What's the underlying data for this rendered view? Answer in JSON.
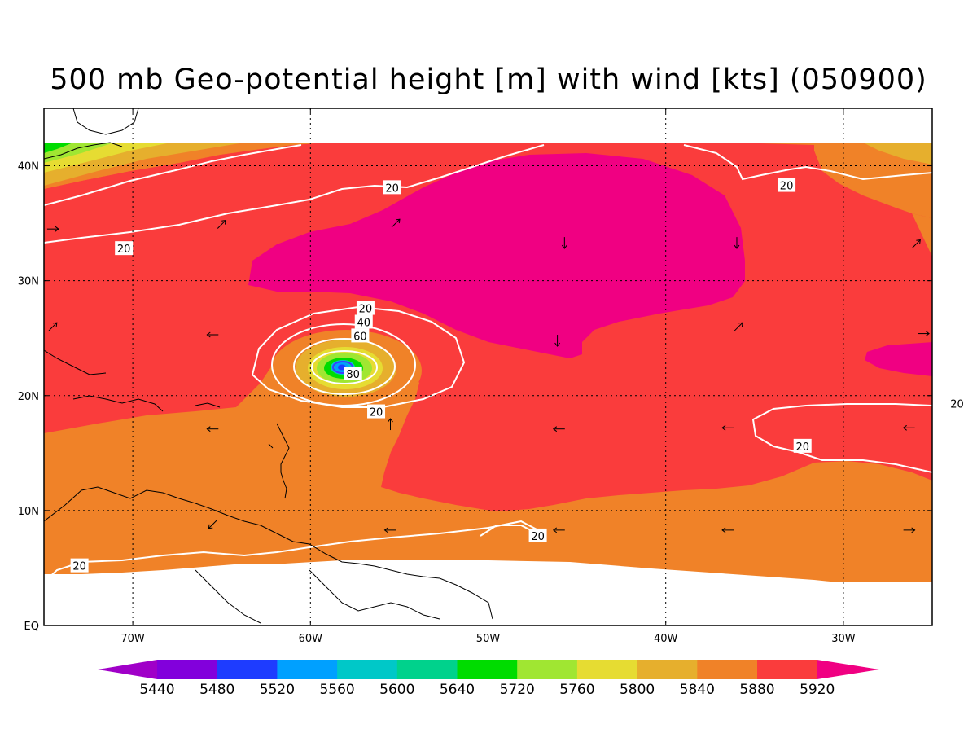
{
  "title": "500 mb Geo-potential height [m] with wind [kts] (050900)",
  "axes": {
    "y_ticks": [
      {
        "label": "40N",
        "value": 40
      },
      {
        "label": "30N",
        "value": 30
      },
      {
        "label": "20N",
        "value": 20
      },
      {
        "label": "10N",
        "value": 10
      },
      {
        "label": "EQ",
        "value": 0
      }
    ],
    "x_ticks": [
      {
        "label": "70W",
        "value": -70
      },
      {
        "label": "60W",
        "value": -60
      },
      {
        "label": "50W",
        "value": -50
      },
      {
        "label": "40W",
        "value": -40
      },
      {
        "label": "30W",
        "value": -30
      }
    ],
    "lon_range": [
      -75,
      -25
    ],
    "lat_range": [
      0,
      45
    ],
    "grid": "dotted"
  },
  "colorbar": {
    "labels": [
      "5440",
      "5480",
      "5520",
      "5560",
      "5600",
      "5640",
      "5720",
      "5760",
      "5800",
      "5840",
      "5880",
      "5920"
    ],
    "colors": [
      "#a000c8",
      "#8200dc",
      "#1e3cff",
      "#00a0ff",
      "#00c8c8",
      "#00d28c",
      "#00dc00",
      "#a0e632",
      "#e6dc32",
      "#e6af2d",
      "#f08228",
      "#fa3c3c",
      "#f00082"
    ],
    "arrow_left": true,
    "arrow_right": true
  },
  "contour_labels": [
    {
      "text": "20",
      "lon": -70.5,
      "lat": 32.8
    },
    {
      "text": "20",
      "lon": -55.4,
      "lat": 38.1
    },
    {
      "text": "20",
      "lon": -33.2,
      "lat": 38.3
    },
    {
      "text": "20",
      "lon": -56.9,
      "lat": 27.6
    },
    {
      "text": "40",
      "lon": -57.0,
      "lat": 26.4
    },
    {
      "text": "60",
      "lon": -57.2,
      "lat": 25.2
    },
    {
      "text": "80",
      "lon": -57.6,
      "lat": 21.9
    },
    {
      "text": "20",
      "lon": -56.3,
      "lat": 18.6
    },
    {
      "text": "20",
      "lon": -23.6,
      "lat": 19.3
    },
    {
      "text": "20",
      "lon": -32.3,
      "lat": 15.6
    },
    {
      "text": "20",
      "lon": -47.2,
      "lat": 7.8
    },
    {
      "text": "20",
      "lon": -73.0,
      "lat": 5.2
    }
  ],
  "wind_vectors": [
    {
      "lon": -74.5,
      "lat": 34.5,
      "dir": "E"
    },
    {
      "lon": -65.0,
      "lat": 34.9,
      "dir": "NE"
    },
    {
      "lon": -55.2,
      "lat": 35.0,
      "dir": "NE"
    },
    {
      "lon": -45.7,
      "lat": 33.3,
      "dir": "S"
    },
    {
      "lon": -36.0,
      "lat": 33.3,
      "dir": "S"
    },
    {
      "lon": -25.9,
      "lat": 33.2,
      "dir": "NE"
    },
    {
      "lon": -74.5,
      "lat": 26.0,
      "dir": "NE"
    },
    {
      "lon": -65.5,
      "lat": 25.3,
      "dir": "W"
    },
    {
      "lon": -46.1,
      "lat": 24.8,
      "dir": "S"
    },
    {
      "lon": -35.9,
      "lat": 26.0,
      "dir": "NE"
    },
    {
      "lon": -25.5,
      "lat": 25.4,
      "dir": "E"
    },
    {
      "lon": -65.5,
      "lat": 17.1,
      "dir": "W"
    },
    {
      "lon": -55.5,
      "lat": 17.5,
      "dir": "N"
    },
    {
      "lon": -46.0,
      "lat": 17.1,
      "dir": "W"
    },
    {
      "lon": -36.5,
      "lat": 17.2,
      "dir": "W"
    },
    {
      "lon": -26.3,
      "lat": 17.2,
      "dir": "W"
    },
    {
      "lon": -65.5,
      "lat": 8.8,
      "dir": "SW"
    },
    {
      "lon": -55.5,
      "lat": 8.3,
      "dir": "W"
    },
    {
      "lon": -46.0,
      "lat": 8.3,
      "dir": "W"
    },
    {
      "lon": -36.5,
      "lat": 8.3,
      "dir": "W"
    },
    {
      "lon": -26.3,
      "lat": 8.3,
      "dir": "E"
    }
  ]
}
